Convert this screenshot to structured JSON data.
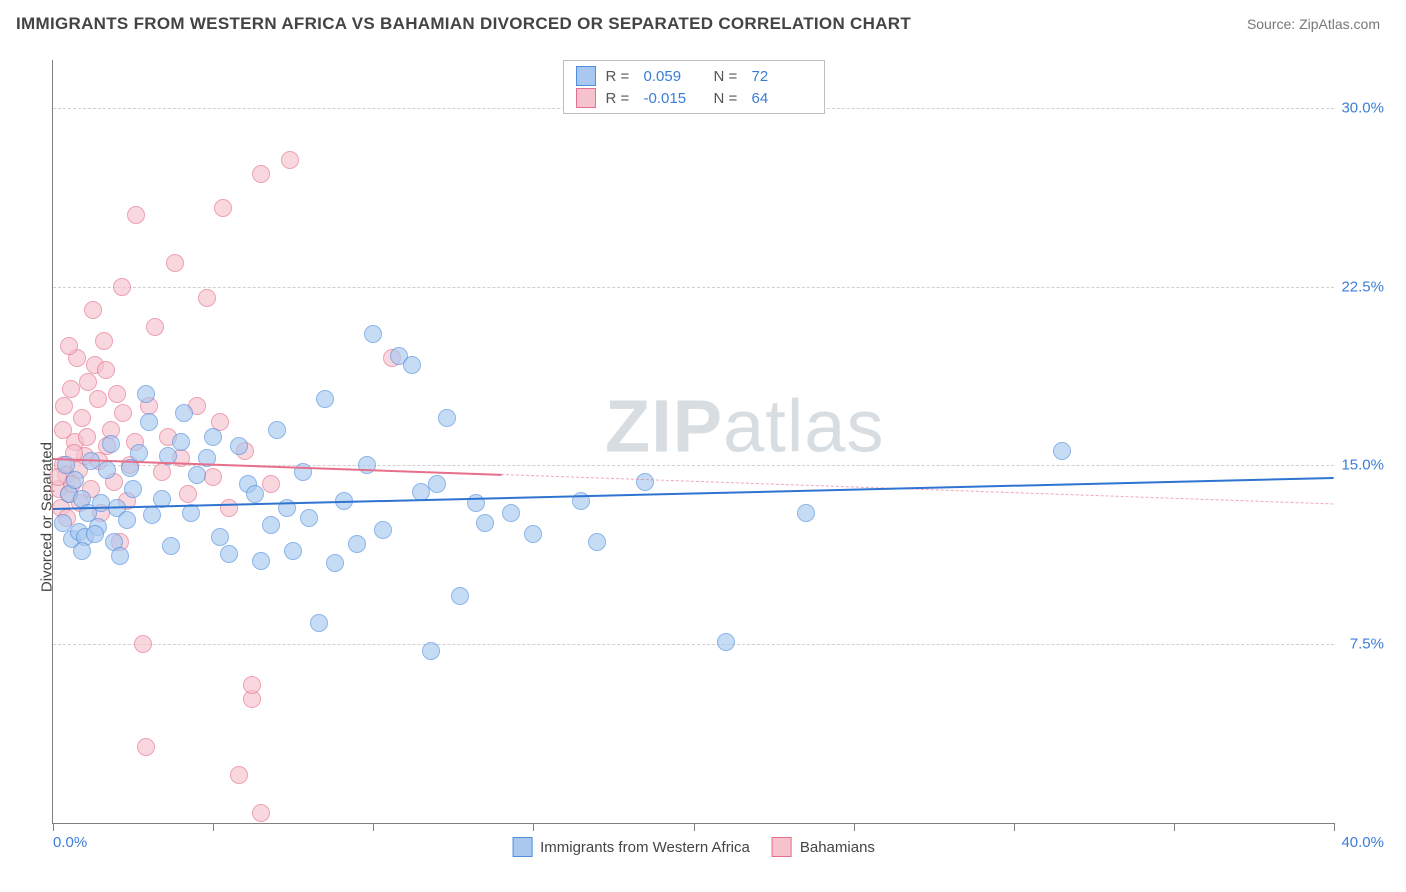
{
  "header": {
    "title": "IMMIGRANTS FROM WESTERN AFRICA VS BAHAMIAN DIVORCED OR SEPARATED CORRELATION CHART",
    "source": "Source: ZipAtlas.com"
  },
  "chart": {
    "type": "scatter",
    "background_color": "#ffffff",
    "grid_color": "#d0d0d0",
    "axis_color": "#808080",
    "y_axis_label": "Divorced or Separated",
    "xlim": [
      0,
      40
    ],
    "ylim": [
      0,
      32
    ],
    "x_ticks": [
      0,
      5,
      10,
      15,
      20,
      25,
      30,
      35,
      40
    ],
    "x_tick_labels": {
      "0": "0.0%",
      "40": "40.0%"
    },
    "y_ticks": [
      7.5,
      15.0,
      22.5,
      30.0
    ],
    "y_tick_labels": [
      "7.5%",
      "15.0%",
      "22.5%",
      "30.0%"
    ],
    "watermark": {
      "bold": "ZIP",
      "light": "atlas",
      "color": "#d8dde2",
      "fontsize": 74
    },
    "marker_radius": 9,
    "series": [
      {
        "name": "Immigrants from Western Africa",
        "fill": "#a9c8ef",
        "fill_opacity": 0.65,
        "stroke": "#4f8ede",
        "stroke_width": 1.2,
        "trend": {
          "y_start": 13.2,
          "y_end": 14.5,
          "color": "#2f74d0",
          "width": 2.5,
          "x_solid_end": 40
        },
        "r_value": "0.059",
        "n_value": "72",
        "points": [
          [
            0.3,
            12.6
          ],
          [
            0.5,
            13.8
          ],
          [
            0.6,
            11.9
          ],
          [
            0.7,
            14.4
          ],
          [
            0.8,
            12.2
          ],
          [
            0.9,
            13.6
          ],
          [
            1.0,
            12.0
          ],
          [
            1.1,
            13.0
          ],
          [
            1.2,
            15.2
          ],
          [
            1.4,
            12.4
          ],
          [
            1.5,
            13.4
          ],
          [
            1.7,
            14.8
          ],
          [
            1.9,
            11.8
          ],
          [
            2.0,
            13.2
          ],
          [
            2.3,
            12.7
          ],
          [
            2.5,
            14.0
          ],
          [
            2.7,
            15.5
          ],
          [
            2.9,
            18.0
          ],
          [
            3.1,
            12.9
          ],
          [
            3.4,
            13.6
          ],
          [
            3.7,
            11.6
          ],
          [
            4.0,
            16.0
          ],
          [
            4.3,
            13.0
          ],
          [
            4.5,
            14.6
          ],
          [
            4.8,
            15.3
          ],
          [
            5.0,
            16.2
          ],
          [
            5.2,
            12.0
          ],
          [
            5.5,
            11.3
          ],
          [
            5.8,
            15.8
          ],
          [
            6.1,
            14.2
          ],
          [
            6.5,
            11.0
          ],
          [
            6.8,
            12.5
          ],
          [
            7.0,
            16.5
          ],
          [
            7.3,
            13.2
          ],
          [
            7.5,
            11.4
          ],
          [
            7.8,
            14.7
          ],
          [
            8.0,
            12.8
          ],
          [
            8.3,
            8.4
          ],
          [
            8.5,
            17.8
          ],
          [
            8.8,
            10.9
          ],
          [
            9.1,
            13.5
          ],
          [
            9.5,
            11.7
          ],
          [
            10.0,
            20.5
          ],
          [
            10.3,
            12.3
          ],
          [
            10.8,
            19.6
          ],
          [
            11.2,
            19.2
          ],
          [
            11.5,
            13.9
          ],
          [
            11.8,
            7.2
          ],
          [
            12.3,
            17.0
          ],
          [
            12.7,
            9.5
          ],
          [
            13.2,
            13.4
          ],
          [
            13.5,
            12.6
          ],
          [
            14.3,
            13.0
          ],
          [
            15.0,
            12.1
          ],
          [
            16.5,
            13.5
          ],
          [
            17.0,
            11.8
          ],
          [
            18.5,
            14.3
          ],
          [
            21.0,
            7.6
          ],
          [
            23.5,
            13.0
          ],
          [
            31.5,
            15.6
          ],
          [
            1.8,
            15.9
          ],
          [
            2.1,
            11.2
          ],
          [
            3.0,
            16.8
          ],
          [
            4.1,
            17.2
          ],
          [
            0.4,
            15.0
          ],
          [
            0.9,
            11.4
          ],
          [
            1.3,
            12.1
          ],
          [
            2.4,
            14.9
          ],
          [
            3.6,
            15.4
          ],
          [
            6.3,
            13.8
          ],
          [
            9.8,
            15.0
          ],
          [
            12.0,
            14.2
          ]
        ]
      },
      {
        "name": "Bahamians",
        "fill": "#f5c2cd",
        "fill_opacity": 0.65,
        "stroke": "#e66f8b",
        "stroke_width": 1.2,
        "trend": {
          "y_start": 15.3,
          "y_end": 13.4,
          "color": "#e66f8b",
          "width": 2,
          "x_solid_end": 14
        },
        "r_value": "-0.015",
        "n_value": "64",
        "points": [
          [
            0.2,
            14.0
          ],
          [
            0.3,
            15.0
          ],
          [
            0.4,
            14.6
          ],
          [
            0.5,
            13.8
          ],
          [
            0.6,
            14.2
          ],
          [
            0.7,
            16.0
          ],
          [
            0.8,
            14.8
          ],
          [
            0.9,
            17.0
          ],
          [
            1.0,
            15.4
          ],
          [
            1.1,
            18.5
          ],
          [
            1.2,
            14.0
          ],
          [
            1.3,
            19.2
          ],
          [
            1.4,
            17.8
          ],
          [
            1.5,
            13.0
          ],
          [
            1.6,
            20.2
          ],
          [
            1.7,
            15.8
          ],
          [
            1.8,
            16.5
          ],
          [
            1.9,
            14.3
          ],
          [
            2.0,
            18.0
          ],
          [
            2.1,
            11.8
          ],
          [
            2.2,
            17.2
          ],
          [
            2.3,
            13.5
          ],
          [
            2.4,
            15.0
          ],
          [
            2.6,
            25.5
          ],
          [
            2.8,
            7.5
          ],
          [
            3.0,
            17.5
          ],
          [
            3.2,
            20.8
          ],
          [
            3.4,
            14.7
          ],
          [
            3.6,
            16.2
          ],
          [
            3.8,
            23.5
          ],
          [
            4.0,
            15.3
          ],
          [
            4.2,
            13.8
          ],
          [
            4.5,
            17.5
          ],
          [
            4.8,
            22.0
          ],
          [
            5.0,
            14.5
          ],
          [
            5.2,
            16.8
          ],
          [
            5.3,
            25.8
          ],
          [
            5.5,
            13.2
          ],
          [
            5.8,
            2.0
          ],
          [
            6.0,
            15.6
          ],
          [
            6.2,
            5.2
          ],
          [
            6.2,
            5.8
          ],
          [
            6.5,
            27.2
          ],
          [
            6.8,
            14.2
          ],
          [
            6.5,
            0.4
          ],
          [
            7.4,
            27.8
          ],
          [
            10.6,
            19.5
          ],
          [
            0.15,
            14.5
          ],
          [
            0.25,
            13.2
          ],
          [
            0.35,
            17.5
          ],
          [
            0.45,
            12.8
          ],
          [
            0.55,
            18.2
          ],
          [
            0.65,
            15.5
          ],
          [
            0.75,
            19.5
          ],
          [
            0.85,
            13.4
          ],
          [
            1.05,
            16.2
          ],
          [
            1.25,
            21.5
          ],
          [
            1.45,
            15.2
          ],
          [
            1.65,
            19.0
          ],
          [
            2.15,
            22.5
          ],
          [
            2.55,
            16.0
          ],
          [
            0.5,
            20.0
          ],
          [
            0.3,
            16.5
          ],
          [
            2.9,
            3.2
          ]
        ]
      }
    ],
    "legend_top_labels": {
      "r": "R =",
      "n": "N ="
    },
    "legend_bottom": [
      {
        "label": "Immigrants from Western Africa",
        "fill": "#a9c8ef",
        "stroke": "#4f8ede"
      },
      {
        "label": "Bahamians",
        "fill": "#f5c2cd",
        "stroke": "#e66f8b"
      }
    ]
  }
}
